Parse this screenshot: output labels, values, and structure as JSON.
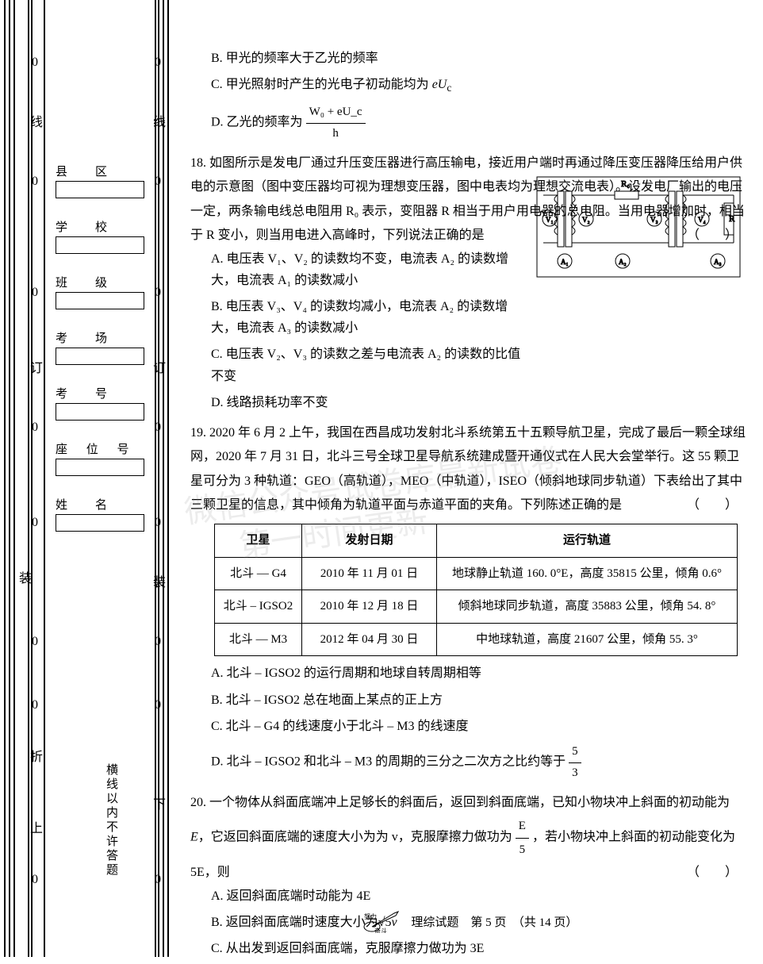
{
  "sidebar": {
    "boxes": [
      {
        "label": "县　区"
      },
      {
        "label": "学　校"
      },
      {
        "label": "班　级"
      },
      {
        "label": "考　场"
      },
      {
        "label": "考　号"
      },
      {
        "label": "座 位 号"
      },
      {
        "label": "姓　名"
      }
    ],
    "vertical_chars": [
      "线",
      "订",
      "折",
      "装",
      "线",
      "上"
    ],
    "warning": "横线以内不许答题",
    "down_char": "下",
    "zero": "0"
  },
  "q17": {
    "opt_b": "B. 甲光的频率大于乙光的频率",
    "opt_c_prefix": "C. 甲光照射时产生的光电子初动能均为 ",
    "opt_c_var": "eU",
    "opt_c_sub": "c",
    "opt_d_prefix": "D. 乙光的频率为",
    "opt_d_num": "W₀ + eU_c",
    "opt_d_den": "h"
  },
  "q18": {
    "num": "18.",
    "stem": "如图所示是发电厂通过升压变压器进行高压输电，接近用户端时再通过降压变压器降压给用户供电的示意图（图中变压器均可视为理想变压器，图中电表均为理想交流电表）。设发电厂输出的电压一定，两条输电线总电阻用 R₀ 表示，变阻器 R 相当于用户用电器的总电阻。当用电器增加时，相当于 R 变小，则当用电进入高峰时，下列说法正确的是",
    "opt_a": "A. 电压表 V₁、V₂ 的读数均不变，电流表 A₂ 的读数增大，电流表 A₁ 的读数减小",
    "opt_b": "B. 电压表 V₃、V₄ 的读数均减小，电流表 A₂ 的读数增大，电流表 A₃ 的读数减小",
    "opt_c": "C. 电压表 V₂、V₃ 的读数之差与电流表 A₂ 的读数的比值不变",
    "opt_d": "D. 线路损耗功率不变",
    "circuit": {
      "R0": "R₀",
      "R": "R",
      "meters": [
        "V₁",
        "V₂",
        "V₃",
        "V₄",
        "A₁",
        "A₂",
        "A₃"
      ],
      "line_color": "#000000"
    }
  },
  "q19": {
    "num": "19.",
    "stem": "2020 年 6 月 2 上午，我国在西昌成功发射北斗系统第五十五颗导航卫星，完成了最后一颗全球组网，2020 年 7 月 31 日，北斗三号全球卫星导航系统建成暨开通仪式在人民大会堂举行。这 55 颗卫星可分为 3 种轨道：GEO（高轨道），MEO（中轨道），ISEO（倾斜地球同步轨道）下表给出了其中三颗卫星的信息，其中倾角为轨道平面与赤道平面的夹角。下列陈述正确的是",
    "table": {
      "headers": [
        "卫星",
        "发射日期",
        "运行轨道"
      ],
      "rows": [
        [
          "北斗 — G4",
          "2010 年 11 月 01 日",
          "地球静止轨道 160. 0°E，高度 35815 公里，倾角 0.6°"
        ],
        [
          "北斗 – IGSO2",
          "2010 年 12 月 18 日",
          "倾斜地球同步轨道，高度 35883 公里，倾角 54. 8°"
        ],
        [
          "北斗 — M3",
          "2012 年 04 月 30 日",
          "中地球轨道，高度 21607 公里，倾角 55. 3°"
        ]
      ],
      "col_widths": [
        "110px",
        "170px",
        "380px"
      ]
    },
    "opt_a": "A. 北斗 – IGSO2 的运行周期和地球自转周期相等",
    "opt_b": "B. 北斗 – IGSO2 总在地面上某点的正上方",
    "opt_c": "C. 北斗 – G4 的线速度小于北斗 – M3 的线速度",
    "opt_d_prefix": "D. 北斗 – IGSO2 和北斗 – M3 的周期的三分之二次方之比约等于",
    "opt_d_num": "5",
    "opt_d_den": "3"
  },
  "q20": {
    "num": "20.",
    "stem_1": "一个物体从斜面底端冲上足够长的斜面后，返回到斜面底端，已知小物块冲上斜面的初动能为",
    "stem_E": " E",
    "stem_2": "，它返回斜面底端的速度大小为为 v，克服摩擦力做功为",
    "stem_frac_num": "E",
    "stem_frac_den": "5",
    "stem_3": "，若小物块冲上斜面的初动能变化为 5E，则",
    "opt_a": "A. 返回斜面底端时动能为 4E",
    "opt_b_prefix": "B. 返回斜面底端时速度大小为",
    "opt_b_sqrt": "√5",
    "opt_b_suffix": "v",
    "opt_c": "C. 从出发到返回斜面底端，克服摩擦力做功为 3E"
  },
  "footer": {
    "text": "理综试题　第 5 页　（共 14 页）",
    "icon_label1": "努力",
    "icon_label2": "奋斗"
  },
  "watermark": {
    "line1": "微信公众号试卷库最新试卷",
    "line2": "第一时间更新"
  },
  "colors": {
    "text": "#000000",
    "bg": "#ffffff",
    "watermark": "rgba(130,130,130,0.15)"
  }
}
